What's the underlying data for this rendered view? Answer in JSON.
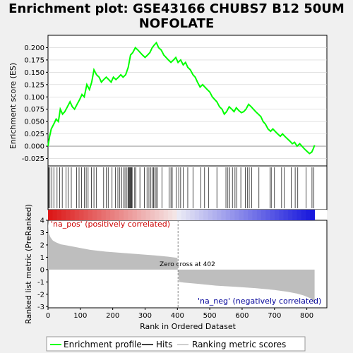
{
  "title_line1": "Enrichment plot: GSE43166 CHUBS7 B12 50UM",
  "title_line2": "NOFOLATE",
  "colors": {
    "enrichment": "#00ff00",
    "hits": "#000000",
    "ranking": "#bebebe",
    "pos_label": "#cc0000",
    "neg_label": "#000099",
    "background": "#f0f0f0",
    "panel": "#ffffff"
  },
  "chart_data": [
    {
      "type": "line",
      "name": "enrichment-profile",
      "ylabel": "Enrichment score (ES)",
      "xlim": [
        0,
        862
      ],
      "ylim": [
        -0.04,
        0.225
      ],
      "yticks": [
        -0.025,
        0.0,
        0.025,
        0.05,
        0.075,
        0.1,
        0.125,
        0.15,
        0.175,
        0.2
      ],
      "ytick_labels": [
        "-0.025",
        "0.000",
        "0.025",
        "0.050",
        "0.075",
        "0.100",
        "0.125",
        "0.150",
        "0.175",
        "0.200"
      ],
      "x": [
        0,
        5,
        10,
        18,
        25,
        32,
        38,
        45,
        52,
        60,
        68,
        75,
        82,
        90,
        98,
        105,
        112,
        120,
        128,
        135,
        142,
        150,
        158,
        165,
        172,
        180,
        188,
        195,
        202,
        210,
        218,
        225,
        232,
        240,
        248,
        255,
        262,
        270,
        278,
        285,
        292,
        300,
        308,
        315,
        322,
        328,
        335,
        342,
        350,
        358,
        365,
        372,
        380,
        388,
        395,
        402,
        410,
        418,
        425,
        432,
        440,
        448,
        455,
        462,
        470,
        478,
        485,
        492,
        500,
        508,
        515,
        522,
        530,
        538,
        545,
        552,
        560,
        568,
        575,
        582,
        590,
        598,
        605,
        612,
        620,
        628,
        635,
        642,
        650,
        658,
        665,
        672,
        680,
        688,
        695,
        702,
        710,
        718,
        725,
        732,
        740,
        748,
        755,
        762,
        770,
        778,
        785,
        792,
        800,
        808,
        815,
        820,
        824
      ],
      "y": [
        0.0,
        0.02,
        0.035,
        0.045,
        0.055,
        0.05,
        0.075,
        0.065,
        0.07,
        0.08,
        0.09,
        0.08,
        0.075,
        0.085,
        0.095,
        0.105,
        0.1,
        0.125,
        0.115,
        0.13,
        0.155,
        0.145,
        0.14,
        0.13,
        0.135,
        0.14,
        0.135,
        0.13,
        0.14,
        0.135,
        0.14,
        0.145,
        0.14,
        0.145,
        0.16,
        0.185,
        0.19,
        0.2,
        0.195,
        0.19,
        0.185,
        0.18,
        0.185,
        0.19,
        0.2,
        0.205,
        0.21,
        0.2,
        0.195,
        0.185,
        0.18,
        0.175,
        0.17,
        0.175,
        0.18,
        0.17,
        0.175,
        0.165,
        0.17,
        0.16,
        0.155,
        0.145,
        0.14,
        0.13,
        0.12,
        0.125,
        0.12,
        0.115,
        0.11,
        0.1,
        0.095,
        0.09,
        0.08,
        0.075,
        0.065,
        0.07,
        0.08,
        0.075,
        0.07,
        0.078,
        0.072,
        0.068,
        0.07,
        0.075,
        0.085,
        0.08,
        0.075,
        0.07,
        0.065,
        0.06,
        0.05,
        0.045,
        0.035,
        0.03,
        0.035,
        0.03,
        0.025,
        0.02,
        0.025,
        0.02,
        0.015,
        0.01,
        0.005,
        0.008,
        0.0,
        0.005,
        0.0,
        -0.005,
        -0.01,
        -0.015,
        -0.012,
        -0.005,
        0.002
      ]
    },
    {
      "type": "scatter",
      "name": "hits",
      "hit_ranks": [
        2,
        6,
        12,
        18,
        28,
        36,
        44,
        56,
        62,
        72,
        88,
        96,
        104,
        112,
        118,
        124,
        134,
        142,
        150,
        172,
        180,
        186,
        198,
        208,
        216,
        222,
        228,
        234,
        238,
        244,
        248,
        250,
        252,
        254,
        256,
        258,
        260,
        268,
        272,
        284,
        298,
        306,
        312,
        318,
        322,
        326,
        330,
        334,
        338,
        352,
        374,
        380,
        384,
        396,
        404,
        410,
        418,
        432,
        448,
        472,
        484,
        496,
        522,
        550,
        556,
        562,
        570,
        578,
        584,
        596,
        610,
        616,
        622,
        630,
        652,
        686,
        690,
        700,
        722,
        730,
        752,
        764,
        772,
        798,
        816,
        822
      ]
    },
    {
      "type": "area",
      "name": "ranking-metric",
      "ylabel": "Ranked list metric (PreRanked)",
      "xlabel": "Rank in Ordered Dataset",
      "xlim": [
        0,
        862
      ],
      "ylim": [
        -3.1,
        4.0
      ],
      "yticks": [
        -3,
        -2,
        -1,
        0,
        1,
        2,
        3,
        4
      ],
      "xticks": [
        0,
        100,
        200,
        300,
        400,
        500,
        600,
        700,
        800
      ],
      "x": [
        0,
        3,
        8,
        15,
        25,
        40,
        60,
        90,
        130,
        180,
        230,
        280,
        330,
        370,
        400,
        401,
        402,
        405,
        420,
        460,
        520,
        580,
        640,
        700,
        740,
        770,
        790,
        805,
        815,
        820,
        824
      ],
      "y": [
        3.9,
        2.9,
        2.6,
        2.35,
        2.2,
        2.05,
        1.95,
        1.8,
        1.6,
        1.45,
        1.35,
        1.25,
        1.15,
        1.05,
        0.95,
        0.0,
        0.0,
        -1.0,
        -1.05,
        -1.15,
        -1.3,
        -1.4,
        -1.5,
        -1.65,
        -1.8,
        -1.95,
        -2.1,
        -2.25,
        -2.4,
        -2.6,
        -2.8
      ],
      "zero_cross": 402,
      "zero_cross_label": "Zero cross at 402",
      "pos_label": "'na_pos' (positively correlated)",
      "neg_label": "'na_neg' (negatively correlated)"
    }
  ],
  "legend": {
    "items": [
      {
        "label": "Enrichment profile"
      },
      {
        "label": "Hits"
      },
      {
        "label": "Ranking metric scores"
      }
    ]
  }
}
